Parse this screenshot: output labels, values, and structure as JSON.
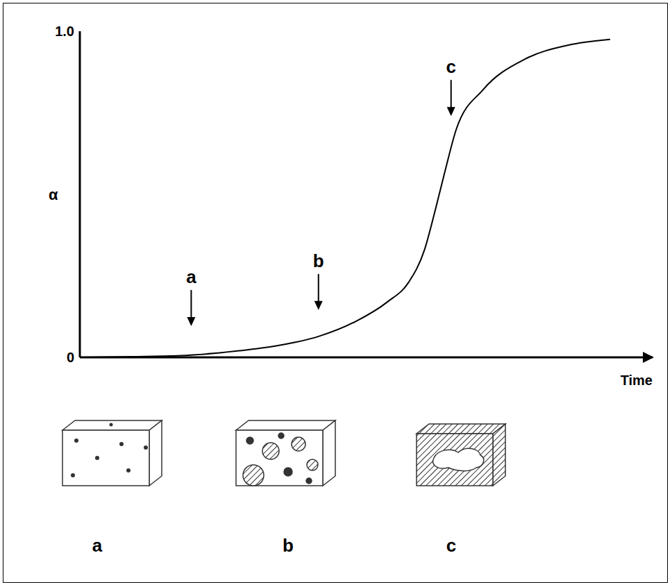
{
  "chart_data": {
    "type": "line",
    "x_label": "Time",
    "y_label": "α",
    "x": [
      0,
      1,
      2,
      3,
      3.7,
      4.5,
      5.2,
      5.8,
      6.2,
      6.5,
      6.7,
      6.9,
      7.1,
      7.6,
      8.4,
      9.2,
      10
    ],
    "values": [
      0,
      0.002,
      0.006,
      0.02,
      0.035,
      0.064,
      0.11,
      0.17,
      0.23,
      0.33,
      0.45,
      0.58,
      0.7,
      0.82,
      0.915,
      0.957,
      0.975
    ],
    "color": "#000000",
    "xlim": [
      0,
      10.8
    ],
    "ylim": [
      0,
      1
    ],
    "yticks": [
      0,
      {
        "value": 1,
        "label": "1.0"
      }
    ],
    "tick_labels": "y",
    "grid": false,
    "annotations": [
      {
        "text": "a",
        "x": 2.1,
        "y": 0.096
      },
      {
        "text": "b",
        "x": 4.5,
        "y": 0.145
      },
      {
        "text": "c",
        "x": 7.0,
        "y": 0.74
      }
    ],
    "sketch_labels": [
      "a",
      "b",
      "c"
    ]
  }
}
